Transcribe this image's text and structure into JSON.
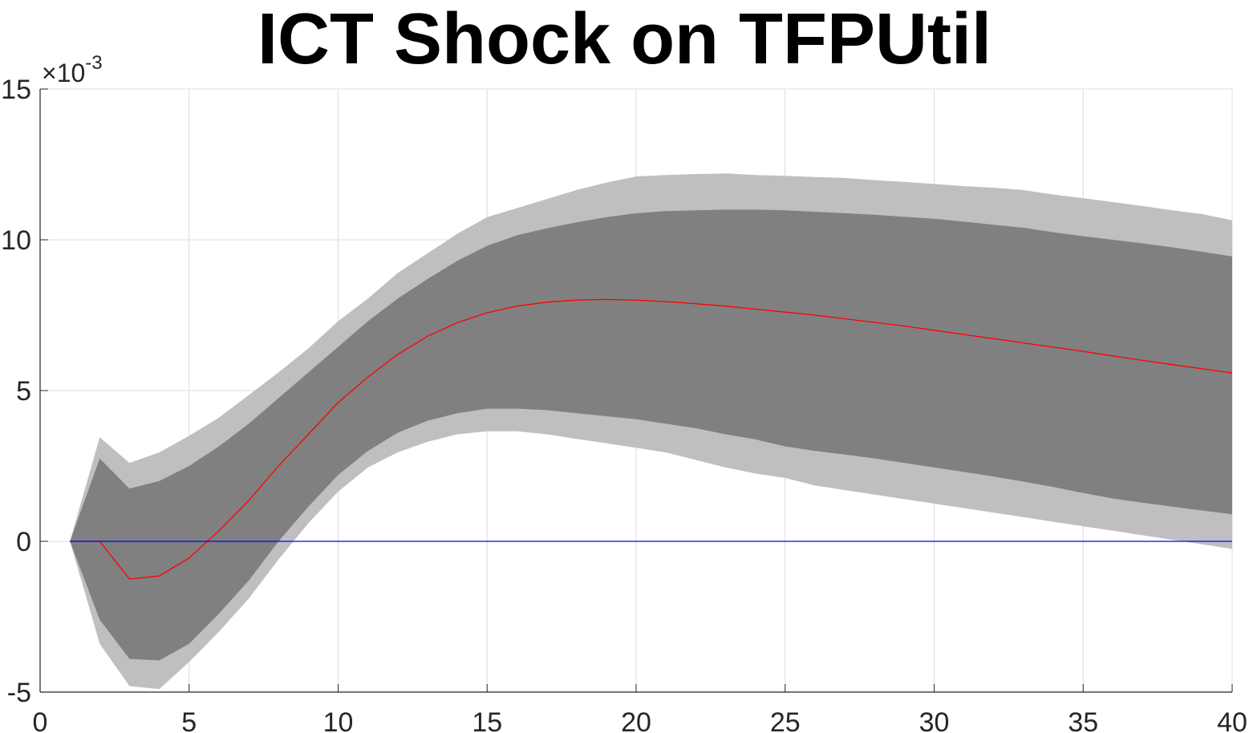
{
  "chart_data": {
    "type": "area",
    "title": "ICT Shock on TFPUtil",
    "xlabel": "",
    "ylabel": "",
    "y_exponent_label": {
      "prefix": "×10",
      "power": "-3"
    },
    "xlim": [
      0,
      40
    ],
    "ylim": [
      -5,
      15
    ],
    "x_ticks": [
      0,
      5,
      10,
      15,
      20,
      25,
      30,
      35,
      40
    ],
    "y_ticks": [
      -5,
      0,
      5,
      10,
      15
    ],
    "grid": true,
    "x": [
      1,
      2,
      3,
      4,
      5,
      6,
      7,
      8,
      9,
      10,
      11,
      12,
      13,
      14,
      15,
      16,
      17,
      18,
      19,
      20,
      21,
      22,
      23,
      24,
      25,
      26,
      27,
      28,
      29,
      30,
      31,
      32,
      33,
      34,
      35,
      36,
      37,
      38,
      39,
      40
    ],
    "outer_band": {
      "upper": [
        0,
        3.45,
        2.6,
        2.95,
        3.5,
        4.1,
        4.85,
        5.6,
        6.4,
        7.3,
        8.05,
        8.9,
        9.55,
        10.2,
        10.75,
        11.05,
        11.35,
        11.65,
        11.9,
        12.1,
        12.15,
        12.18,
        12.2,
        12.15,
        12.12,
        12.08,
        12.05,
        11.98,
        11.92,
        11.85,
        11.78,
        11.73,
        11.65,
        11.5,
        11.38,
        11.25,
        11.12,
        10.98,
        10.85,
        10.65
      ],
      "lower": [
        0,
        -3.4,
        -4.8,
        -4.9,
        -4.0,
        -3.0,
        -1.9,
        -0.6,
        0.6,
        1.65,
        2.45,
        2.95,
        3.3,
        3.55,
        3.65,
        3.65,
        3.55,
        3.4,
        3.25,
        3.1,
        2.95,
        2.7,
        2.45,
        2.25,
        2.1,
        1.85,
        1.7,
        1.55,
        1.4,
        1.25,
        1.1,
        0.95,
        0.8,
        0.65,
        0.5,
        0.35,
        0.2,
        0.05,
        -0.1,
        -0.25
      ],
      "color": "#bfbfbf"
    },
    "inner_band": {
      "upper": [
        0,
        2.75,
        1.75,
        2.0,
        2.5,
        3.15,
        3.9,
        4.75,
        5.6,
        6.45,
        7.3,
        8.05,
        8.7,
        9.3,
        9.8,
        10.15,
        10.38,
        10.58,
        10.75,
        10.88,
        10.95,
        10.98,
        11.0,
        11.0,
        10.98,
        10.93,
        10.88,
        10.83,
        10.76,
        10.7,
        10.6,
        10.5,
        10.4,
        10.25,
        10.12,
        10.0,
        9.88,
        9.75,
        9.6,
        9.45
      ],
      "lower": [
        0,
        -2.6,
        -3.9,
        -3.95,
        -3.4,
        -2.4,
        -1.3,
        0.0,
        1.15,
        2.2,
        3.0,
        3.6,
        4.0,
        4.25,
        4.4,
        4.4,
        4.35,
        4.25,
        4.15,
        4.05,
        3.9,
        3.75,
        3.55,
        3.38,
        3.15,
        3.0,
        2.88,
        2.75,
        2.6,
        2.45,
        2.3,
        2.15,
        1.98,
        1.8,
        1.6,
        1.42,
        1.28,
        1.15,
        1.02,
        0.9
      ],
      "color": "#808080"
    },
    "series": [
      {
        "values": [
          0,
          0,
          -1.25,
          -1.15,
          -0.55,
          0.35,
          1.35,
          2.5,
          3.55,
          4.6,
          5.45,
          6.2,
          6.8,
          7.25,
          7.58,
          7.8,
          7.93,
          8.0,
          8.02,
          8.0,
          7.95,
          7.88,
          7.8,
          7.7,
          7.6,
          7.5,
          7.38,
          7.26,
          7.14,
          7.0,
          6.86,
          6.72,
          6.58,
          6.44,
          6.3,
          6.15,
          6.0,
          5.86,
          5.72,
          5.58
        ],
        "color": "#ff0000"
      },
      {
        "values": [
          0,
          0,
          0,
          0,
          0,
          0,
          0,
          0,
          0,
          0,
          0,
          0,
          0,
          0,
          0,
          0,
          0,
          0,
          0,
          0,
          0,
          0,
          0,
          0,
          0,
          0,
          0,
          0,
          0,
          0,
          0,
          0,
          0,
          0,
          0,
          0,
          0,
          0,
          0,
          0
        ],
        "color": "#0000ff"
      }
    ]
  }
}
